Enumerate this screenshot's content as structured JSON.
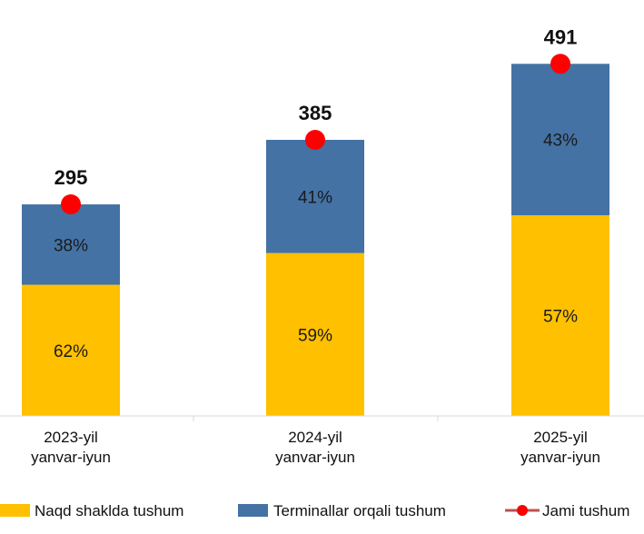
{
  "chart_data": {
    "type": "bar",
    "stacked": true,
    "categories": [
      [
        "2023-yil",
        "yanvar-iyun"
      ],
      [
        "2024-yil",
        "yanvar-iyun"
      ],
      [
        "2025-yil",
        "yanvar-iyun"
      ]
    ],
    "totals": [
      295,
      385,
      491
    ],
    "totals_labels": [
      "295",
      "385",
      "491"
    ],
    "series": [
      {
        "name": "Naqd shaklda tushum",
        "share_percent": [
          62,
          59,
          57
        ],
        "labels": [
          "62%",
          "59%",
          "57%"
        ],
        "color": "#FFC000"
      },
      {
        "name": "Terminallar orqali tushum",
        "share_percent": [
          38,
          41,
          43
        ],
        "labels": [
          "38%",
          "41%",
          "43%"
        ],
        "color": "#4472A4"
      }
    ],
    "total_series": {
      "name": "Jami tushum",
      "marker_color": "#FF0000",
      "line_color": "#C0504D"
    },
    "ylim": [
      0,
      580
    ],
    "grid": false,
    "legend_position": "bottom",
    "title": "",
    "xlabel": "",
    "ylabel": ""
  }
}
